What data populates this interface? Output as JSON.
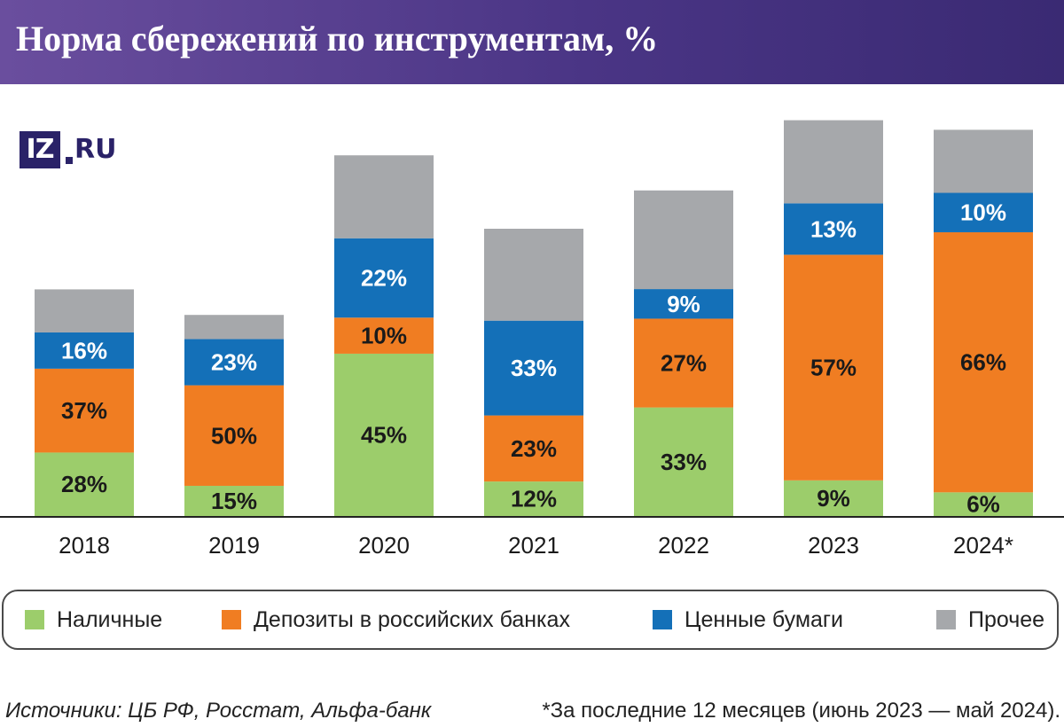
{
  "title": "Норма сбережений по инструментам, %",
  "logo": {
    "box": "IZ",
    "text": "RU"
  },
  "colors": {
    "cash": "#9ccd6b",
    "deposits": "#f07d22",
    "securities": "#1470b8",
    "other": "#a6a8ab"
  },
  "chart_data": {
    "type": "bar",
    "stacked": true,
    "title": "Норма сбережений по инструментам, %",
    "categories": [
      "2018",
      "2019",
      "2020",
      "2021",
      "2022",
      "2023",
      "2024*"
    ],
    "series": [
      {
        "name": "Наличные",
        "key": "cash",
        "values": [
          28,
          15,
          45,
          12,
          33,
          9,
          6
        ],
        "labels": [
          "28%",
          "15%",
          "45%",
          "12%",
          "33%",
          "9%",
          "6%"
        ]
      },
      {
        "name": "Депозиты в российских банках",
        "key": "deposits",
        "values": [
          37,
          50,
          10,
          23,
          27,
          57,
          66
        ],
        "labels": [
          "37%",
          "50%",
          "10%",
          "23%",
          "27%",
          "57%",
          "66%"
        ]
      },
      {
        "name": "Ценные бумаги",
        "key": "securities",
        "values": [
          16,
          23,
          22,
          33,
          9,
          13,
          10
        ],
        "labels": [
          "16%",
          "23%",
          "22%",
          "33%",
          "9%",
          "13%",
          "10%"
        ]
      },
      {
        "name": "Прочее",
        "key": "other",
        "values": [
          19,
          12,
          23,
          32,
          30,
          21,
          16
        ],
        "labels": [
          "",
          "",
          "",
          "",
          "",
          "",
          ""
        ]
      }
    ],
    "total_scale": [
      71,
      63,
      113,
      90,
      102,
      124,
      121
    ],
    "xlabel": "",
    "ylabel": ""
  },
  "legend": [
    {
      "label": "Наличные",
      "key": "cash"
    },
    {
      "label": "Депозиты в российских банках",
      "key": "deposits"
    },
    {
      "label": "Ценные бумаги",
      "key": "securities"
    },
    {
      "label": "Прочее",
      "key": "other"
    }
  ],
  "footer": {
    "sources": "Источники: ЦБ РФ, Росстат, Альфа-банк",
    "note": "*За последние 12 месяцев (июнь 2023 — май 2024)."
  }
}
